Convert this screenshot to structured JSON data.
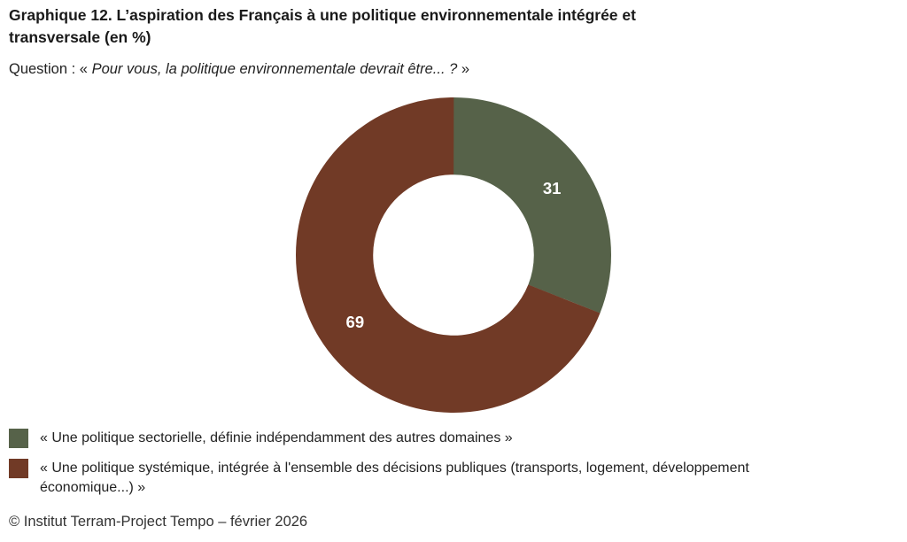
{
  "header": {
    "title": "Graphique 12. L’aspiration des Français à une politique environnementale intégrée et transversale (en %)",
    "question_prefix": "Question : « ",
    "question_italic": "Pour vous, la politique environnementale devrait être... ?",
    "question_suffix": " »"
  },
  "chart_data": {
    "type": "pie",
    "subtype": "donut",
    "title": "L’aspiration des Français à une politique environnementale intégrée et transversale",
    "unit": "%",
    "direction": "clockwise",
    "start_angle_deg": 0,
    "inner_radius_ratio": 0.51,
    "value_label_color": "#ffffff",
    "legend_position": "bottom-left",
    "slices": [
      {
        "label": "« Une politique sectorielle, définie indépendamment des autres domaines »",
        "value": 31,
        "color": "#566249"
      },
      {
        "label": "« Une politique systémique, intégrée à l'ensemble des décisions publiques (transports, logement, développement économique...) »",
        "value": 69,
        "color": "#713a26"
      }
    ]
  },
  "footer": {
    "copyright": "© Institut Terram-Project Tempo – février 2026"
  }
}
